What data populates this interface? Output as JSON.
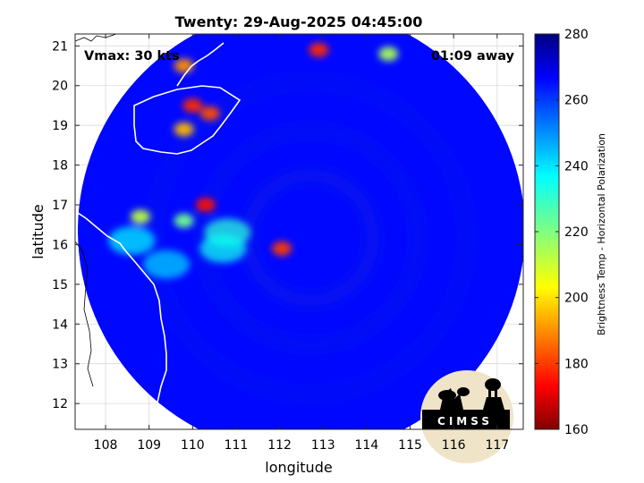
{
  "chart_data": {
    "type": "heatmap",
    "title": "Twenty: 29-Aug-2025 04:45:00",
    "xlabel": "longitude",
    "ylabel": "latitude",
    "xlim": [
      107.3,
      117.6
    ],
    "ylim": [
      11.35,
      21.3
    ],
    "xticks": [
      108,
      109,
      110,
      111,
      112,
      113,
      114,
      115,
      116,
      117
    ],
    "yticks": [
      12,
      13,
      14,
      15,
      16,
      17,
      18,
      19,
      20,
      21
    ],
    "colorbar": {
      "label": "Brightness Temp - Horizontal Polarization",
      "range": [
        160,
        280
      ],
      "ticks": [
        160,
        180,
        200,
        220,
        240,
        260,
        280
      ],
      "colormap": "jet"
    },
    "annotations": {
      "vmax": "Vmax: 30 kts",
      "time_away": "01:09 away"
    },
    "swath_center": {
      "lon": 112.5,
      "lat": 16.35
    },
    "background_temp": 266,
    "features": [
      {
        "lon": 110.3,
        "lat": 17.0,
        "temp": 175
      },
      {
        "lon": 112.05,
        "lat": 15.9,
        "temp": 180
      },
      {
        "lon": 110.0,
        "lat": 19.5,
        "temp": 178
      },
      {
        "lon": 110.4,
        "lat": 19.3,
        "temp": 182
      },
      {
        "lon": 109.8,
        "lat": 20.5,
        "temp": 190
      },
      {
        "lon": 109.8,
        "lat": 18.9,
        "temp": 195
      },
      {
        "lon": 112.9,
        "lat": 20.9,
        "temp": 178
      },
      {
        "lon": 114.5,
        "lat": 20.8,
        "temp": 215
      },
      {
        "lon": 108.8,
        "lat": 16.7,
        "temp": 212
      },
      {
        "lon": 109.8,
        "lat": 16.6,
        "temp": 222
      },
      {
        "lon": 108.6,
        "lat": 16.1,
        "temp": 238
      },
      {
        "lon": 110.8,
        "lat": 16.3,
        "temp": 232
      },
      {
        "lon": 109.4,
        "lat": 15.5,
        "temp": 242
      },
      {
        "lon": 110.7,
        "lat": 15.9,
        "temp": 235
      }
    ],
    "logo_text": "CIMSS"
  }
}
